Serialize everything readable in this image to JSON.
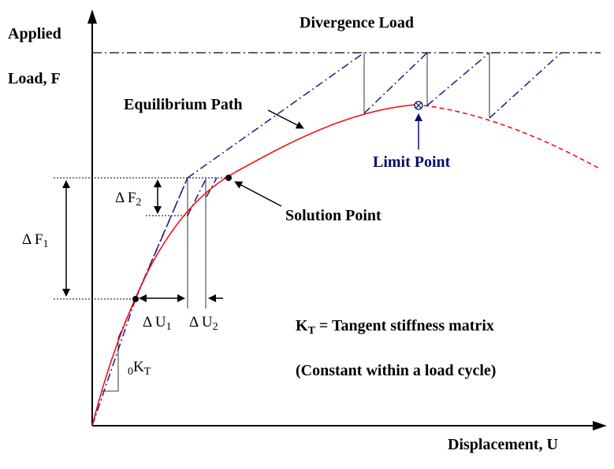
{
  "labels": {
    "y_axis_line1": "Applied",
    "y_axis_line2": "Load, F",
    "x_axis": "Displacement, U",
    "divergence": "Divergence Load",
    "equilibrium_path": "Equilibrium Path",
    "limit_point": "Limit Point",
    "solution_point": "Solution Point",
    "delta_f1": "Δ F",
    "delta_f1_sub": "1",
    "delta_f2": "Δ F",
    "delta_f2_sub": "2",
    "delta_u1": "Δ U",
    "delta_u1_sub": "1",
    "delta_u2": "Δ U",
    "delta_u2_sub": "2",
    "k0_prefix": "0",
    "k0_main": "K",
    "k0_sub": "T",
    "kt_main": "K",
    "kt_sub": "T",
    "kt_rest": " = Tangent stiffness matrix",
    "constant_note": "(Constant within a load cycle)"
  },
  "colors": {
    "axis": "#000000",
    "equilibrium_curve": "#ff0000",
    "iteration_lines": "#1a1a8c",
    "limit_point_text": "#0a0a6e",
    "guides": "#000000"
  },
  "icons": {
    "limit_point_marker": "circle-cross-icon",
    "solution_point_marker": "filled-dot-icon"
  }
}
